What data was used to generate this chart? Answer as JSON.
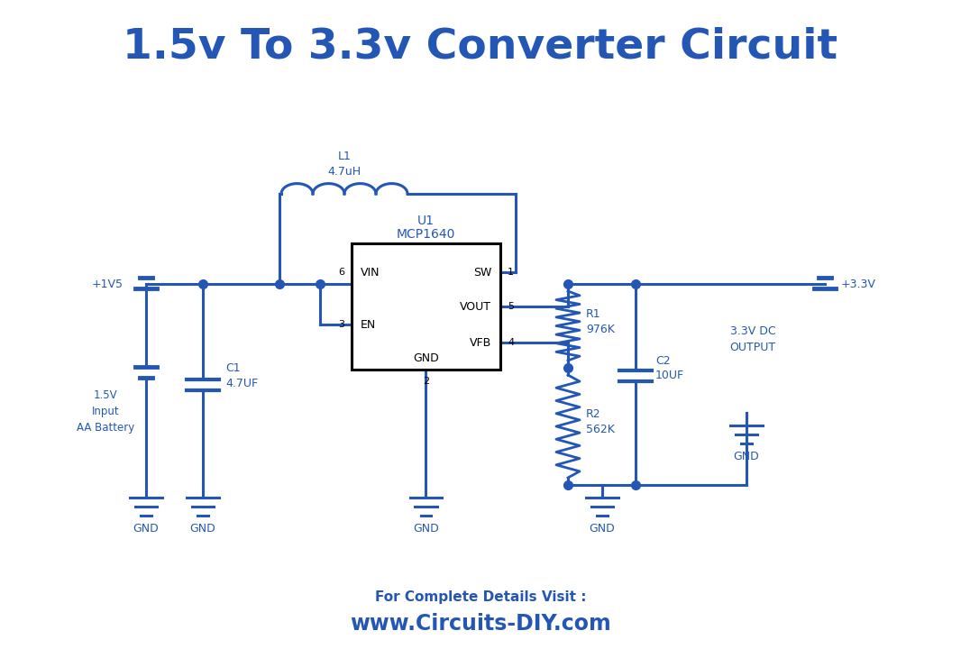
{
  "title": "1.5v To 3.3v Converter Circuit",
  "title_color": "#2457b5",
  "title_fontsize": 34,
  "circuit_color": "#2457b5",
  "line_width": 2.2,
  "bg_color": "#ffffff",
  "footer_text1": "For Complete Details Visit :",
  "footer_text2": "www.Circuits-DIY.com",
  "footer_color": "#2457b5",
  "ic_label1": "U1",
  "ic_label2": "MCP1640",
  "v_in_label": "+1V5",
  "v_out_label": "+3.3V",
  "batt_label": "1.5V\nInput\nAA Battery",
  "C1_label": "C1\n4.7UF",
  "C2_label": "C2\n10UF",
  "R1_label": "R1\n976K",
  "R2_label": "R2\n562K",
  "L1_label": "L1\n4.7uH",
  "out_label": "3.3V DC\nOUTPUT",
  "gnd_label": "GND",
  "pin_VIN": "VIN",
  "pin_EN": "EN",
  "pin_GND": "GND",
  "pin_SW": "SW",
  "pin_VOUT": "VOUT",
  "pin_VFB": "VFB",
  "pn6": "6",
  "pn3": "3",
  "pn2": "2",
  "pn1": "1",
  "pn5": "5",
  "pn4": "4"
}
